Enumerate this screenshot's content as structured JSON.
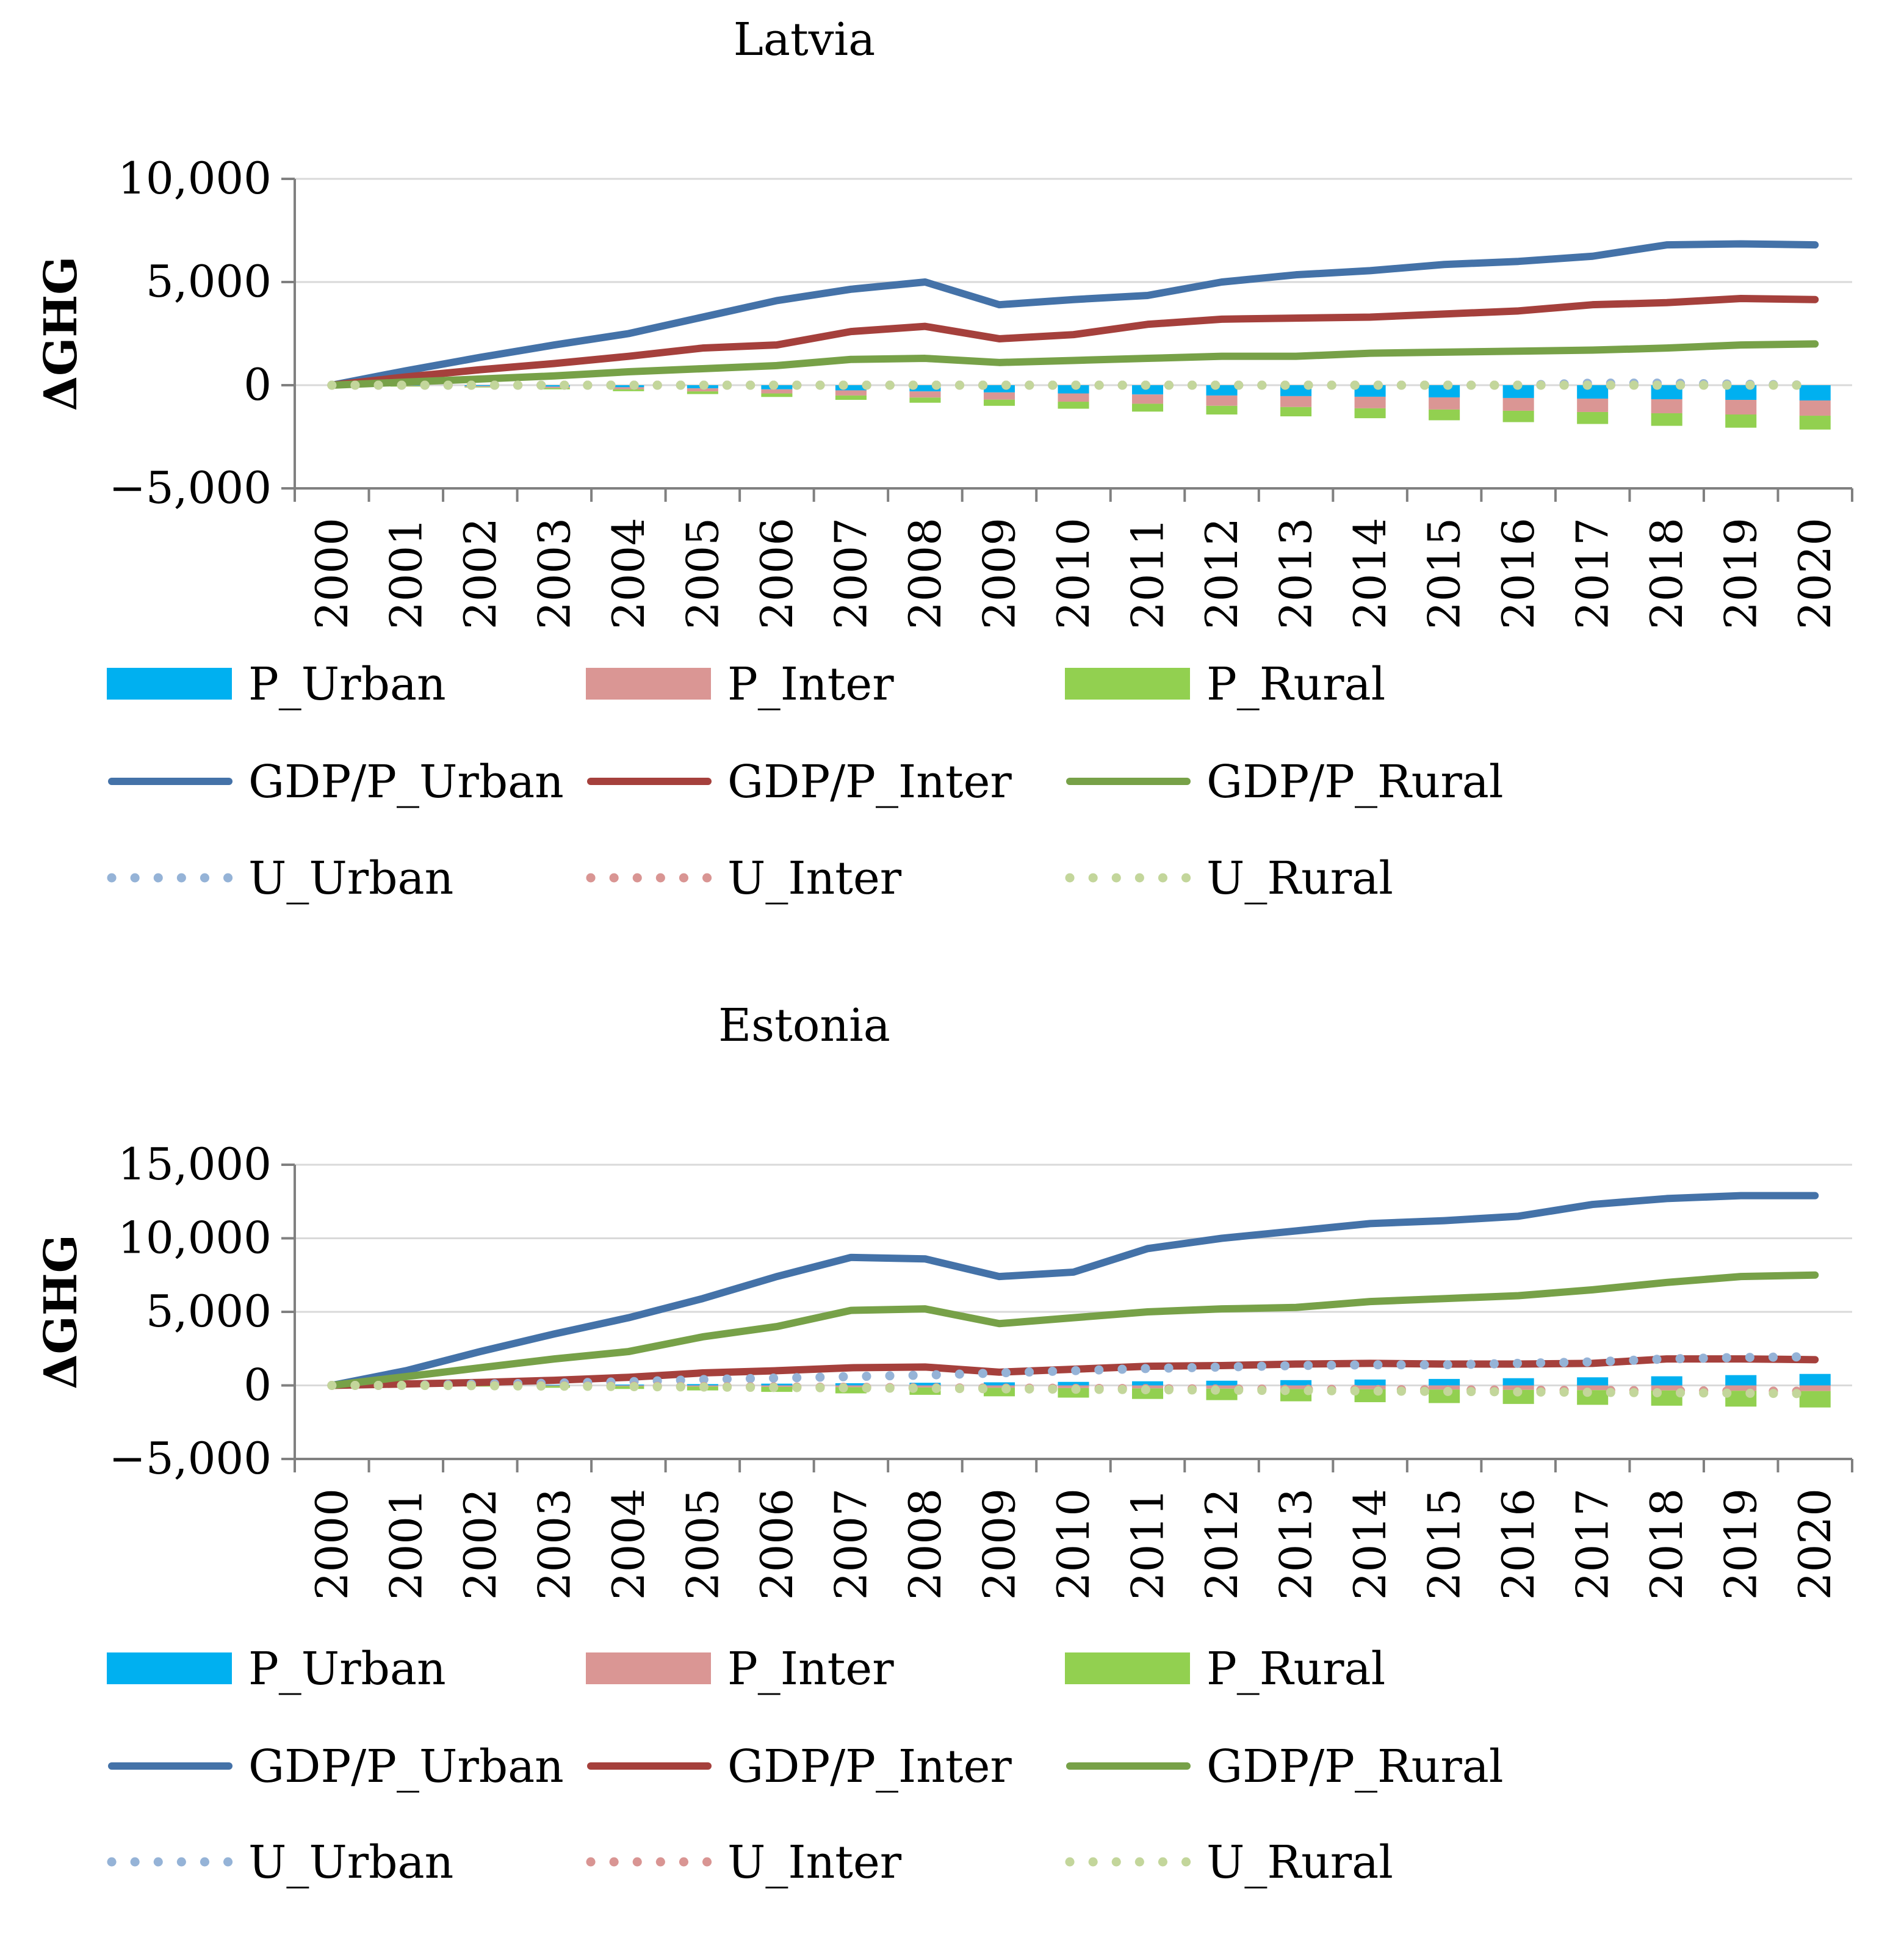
{
  "chart_data": [
    {
      "id": "latvia",
      "type": "bar+line",
      "title": "Latvia",
      "ylabel": "ΔGHG",
      "xlabel": "",
      "ylim": [
        -5000,
        10000
      ],
      "yticks": [
        -5000,
        0,
        5000,
        10000
      ],
      "ytick_labels": [
        "−5,000",
        "0",
        "5,000",
        "10,000"
      ],
      "categories": [
        "2000",
        "2001",
        "2002",
        "2003",
        "2004",
        "2005",
        "2006",
        "2007",
        "2008",
        "2009",
        "2010",
        "2011",
        "2012",
        "2013",
        "2014",
        "2015",
        "2016",
        "2017",
        "2018",
        "2019",
        "2020"
      ],
      "bars": [
        {
          "name": "P_Urban",
          "color": "#00b0f0",
          "values": [
            0,
            -20,
            -40,
            -70,
            -100,
            -150,
            -200,
            -250,
            -300,
            -350,
            -400,
            -450,
            -500,
            -530,
            -560,
            -590,
            -620,
            -650,
            -680,
            -710,
            -740
          ]
        },
        {
          "name": "P_Inter",
          "color": "#da9694",
          "values": [
            0,
            -20,
            -40,
            -70,
            -100,
            -150,
            -200,
            -250,
            -300,
            -350,
            -400,
            -450,
            -500,
            -530,
            -560,
            -590,
            -620,
            -650,
            -680,
            -710,
            -740
          ]
        },
        {
          "name": "P_Rural",
          "color": "#92d050",
          "values": [
            0,
            -15,
            -30,
            -60,
            -90,
            -130,
            -170,
            -210,
            -250,
            -300,
            -340,
            -380,
            -420,
            -450,
            -480,
            -520,
            -550,
            -580,
            -610,
            -640,
            -670
          ]
        }
      ],
      "lines": [
        {
          "name": "GDP/P_Urban",
          "color": "#4472a8",
          "style": "solid",
          "values": [
            0,
            700,
            1350,
            1950,
            2500,
            3300,
            4100,
            4650,
            5000,
            3900,
            4150,
            4350,
            5000,
            5350,
            5550,
            5850,
            6000,
            6250,
            6800,
            6850,
            6800
          ]
        },
        {
          "name": "GDP/P_Inter",
          "color": "#a5403c",
          "style": "solid",
          "values": [
            0,
            400,
            750,
            1050,
            1400,
            1800,
            1950,
            2600,
            2850,
            2250,
            2450,
            2950,
            3200,
            3250,
            3300,
            3450,
            3600,
            3900,
            4000,
            4200,
            4150
          ]
        },
        {
          "name": "GDP/P_Rural",
          "color": "#77a148",
          "style": "solid",
          "values": [
            0,
            150,
            300,
            450,
            650,
            800,
            950,
            1250,
            1300,
            1100,
            1200,
            1300,
            1400,
            1400,
            1550,
            1600,
            1650,
            1700,
            1800,
            1950,
            2000
          ]
        },
        {
          "name": "U_Urban",
          "color": "#95b3d7",
          "style": "dotted",
          "values": [
            0,
            0,
            0,
            0,
            0,
            0,
            0,
            0,
            0,
            0,
            0,
            0,
            0,
            0,
            0,
            0,
            0,
            100,
            100,
            50,
            0
          ]
        },
        {
          "name": "U_Inter",
          "color": "#d99593",
          "style": "dotted",
          "values": [
            0,
            0,
            0,
            0,
            0,
            0,
            0,
            0,
            0,
            0,
            0,
            0,
            0,
            0,
            0,
            0,
            0,
            0,
            0,
            0,
            0
          ]
        },
        {
          "name": "U_Rural",
          "color": "#c3d69b",
          "style": "dotted",
          "values": [
            0,
            0,
            0,
            0,
            0,
            0,
            0,
            0,
            0,
            0,
            0,
            0,
            0,
            0,
            0,
            0,
            0,
            0,
            0,
            0,
            0
          ]
        }
      ],
      "legend_position": "bottom",
      "grid": true
    },
    {
      "id": "estonia",
      "type": "bar+line",
      "title": "Estonia",
      "ylabel": "ΔGHG",
      "xlabel": "",
      "ylim": [
        -5000,
        15000
      ],
      "yticks": [
        -5000,
        0,
        5000,
        10000,
        15000
      ],
      "ytick_labels": [
        "−5,000",
        "0",
        "5,000",
        "10,000",
        "15,000"
      ],
      "categories": [
        "2000",
        "2001",
        "2002",
        "2003",
        "2004",
        "2005",
        "2006",
        "2007",
        "2008",
        "2009",
        "2010",
        "2011",
        "2012",
        "2013",
        "2014",
        "2015",
        "2016",
        "2017",
        "2018",
        "2019",
        "2020"
      ],
      "bars": [
        {
          "name": "P_Urban",
          "color": "#00b0f0",
          "values": [
            0,
            10,
            20,
            40,
            60,
            90,
            120,
            150,
            180,
            210,
            240,
            280,
            320,
            360,
            400,
            440,
            490,
            550,
            620,
            700,
            780
          ]
        },
        {
          "name": "P_Inter",
          "color": "#da9694",
          "values": [
            0,
            -10,
            -20,
            -40,
            -60,
            -80,
            -100,
            -120,
            -140,
            -160,
            -180,
            -200,
            -220,
            -240,
            -260,
            -280,
            -300,
            -320,
            -340,
            -360,
            -380
          ]
        },
        {
          "name": "P_Rural",
          "color": "#92d050",
          "values": [
            0,
            -30,
            -60,
            -120,
            -180,
            -260,
            -340,
            -420,
            -500,
            -580,
            -650,
            -720,
            -780,
            -840,
            -880,
            -920,
            -960,
            -1000,
            -1040,
            -1080,
            -1120
          ]
        }
      ],
      "lines": [
        {
          "name": "GDP/P_Urban",
          "color": "#4472a8",
          "style": "solid",
          "values": [
            0,
            1000,
            2300,
            3500,
            4600,
            5900,
            7400,
            8700,
            8600,
            7400,
            7700,
            9300,
            10000,
            10500,
            11000,
            11200,
            11500,
            12300,
            12700,
            12900,
            12900
          ]
        },
        {
          "name": "GDP/P_Inter",
          "color": "#a5403c",
          "style": "solid",
          "values": [
            0,
            100,
            200,
            350,
            550,
            850,
            1000,
            1200,
            1250,
            900,
            1100,
            1300,
            1350,
            1450,
            1500,
            1450,
            1450,
            1500,
            1800,
            1800,
            1750
          ]
        },
        {
          "name": "GDP/P_Rural",
          "color": "#77a148",
          "style": "solid",
          "values": [
            0,
            600,
            1200,
            1800,
            2300,
            3300,
            4000,
            5100,
            5200,
            4200,
            4600,
            5000,
            5200,
            5300,
            5700,
            5900,
            6100,
            6500,
            7000,
            7400,
            7500
          ]
        },
        {
          "name": "U_Urban",
          "color": "#95b3d7",
          "style": "dotted",
          "values": [
            0,
            0,
            100,
            150,
            250,
            400,
            500,
            600,
            700,
            850,
            1000,
            1150,
            1250,
            1350,
            1400,
            1400,
            1500,
            1600,
            1800,
            1900,
            1950
          ]
        },
        {
          "name": "U_Inter",
          "color": "#d99593",
          "style": "dotted",
          "values": [
            0,
            0,
            0,
            -30,
            -50,
            -80,
            -100,
            -130,
            -160,
            -180,
            -200,
            -220,
            -240,
            -260,
            -280,
            -300,
            -320,
            -340,
            -360,
            -380,
            -400
          ]
        },
        {
          "name": "U_Rural",
          "color": "#c3d69b",
          "style": "dotted",
          "values": [
            0,
            0,
            -20,
            -50,
            -80,
            -110,
            -140,
            -170,
            -200,
            -230,
            -260,
            -290,
            -320,
            -350,
            -380,
            -410,
            -440,
            -470,
            -500,
            -530,
            -560
          ]
        }
      ],
      "legend_position": "bottom",
      "grid": true
    }
  ]
}
